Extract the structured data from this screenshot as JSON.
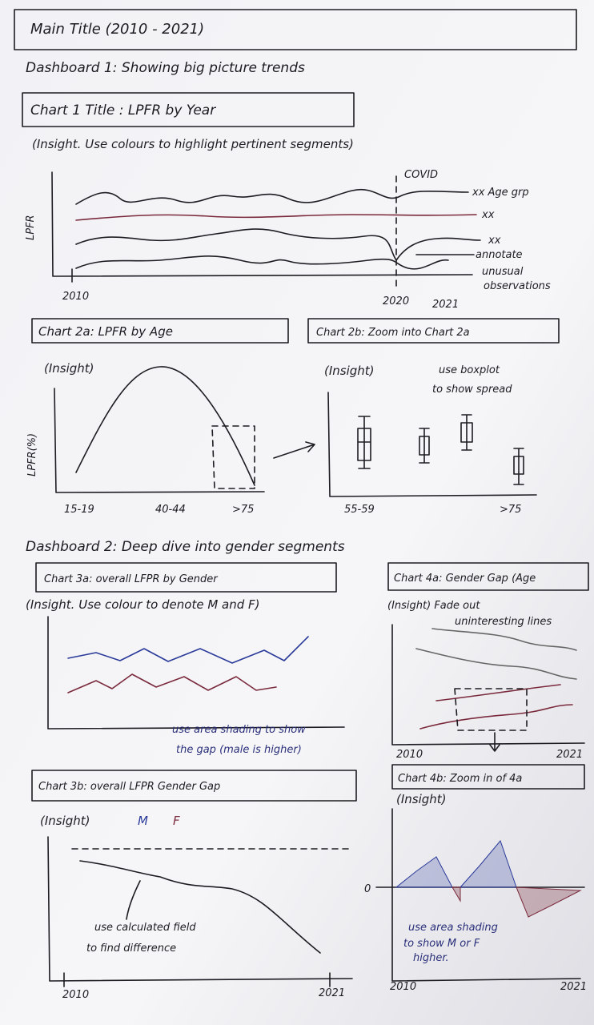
{
  "title": "Main Title (2010 - 2021)",
  "dashboard1": {
    "heading": "Dashboard 1: Showing big picture trends",
    "chart1": {
      "title": "Chart 1 Title : LPFR by Year",
      "insight": "(Insight. Use colours to highlight pertinent segments)",
      "y_label": "LPFR",
      "event_label": "COVID",
      "line_labels": [
        "xx Age grp",
        "xx",
        "xx"
      ],
      "annotation": [
        "annotate",
        "unusual",
        "observations"
      ],
      "x_labels": [
        "2010",
        "2020",
        "2021"
      ]
    },
    "chart2a": {
      "title": "Chart 2a: LPFR by Age",
      "insight": "(Insight)",
      "y_label": "LPFR(%)",
      "x_labels": [
        "15-19",
        "40-44",
        ">75"
      ]
    },
    "chart2b": {
      "title": "Chart 2b: Zoom into Chart 2a",
      "insight": "(Insight)",
      "note": [
        "use boxplot",
        "to show spread"
      ],
      "x_labels": [
        "55-59",
        ">75"
      ]
    }
  },
  "dashboard2": {
    "heading": "Dashboard 2: Deep dive into gender segments",
    "chart3a": {
      "title": "Chart 3a: overall LFPR by Gender",
      "insight": "(Insight. Use colour to denote M and F)",
      "note": [
        "use area shading to show",
        "the gap (male is higher)"
      ]
    },
    "chart4a": {
      "title": "Chart 4a: Gender Gap (Age",
      "insight": [
        "(Insight) Fade out",
        "uninteresting lines"
      ],
      "x_labels": [
        "2010",
        "2021"
      ]
    },
    "chart3b": {
      "title": "Chart 3b: overall LFPR Gender Gap",
      "insight": "(Insight)",
      "legend": [
        "M",
        "F"
      ],
      "note": [
        "use calculated field",
        "to find difference"
      ],
      "x_labels": [
        "2010",
        "2021"
      ]
    },
    "chart4b": {
      "title": "Chart 4b: Zoom in of 4a",
      "insight": "(Insight)",
      "zero_label": "0",
      "note": [
        "use area shading",
        "to show M or F",
        "higher."
      ],
      "x_labels": [
        "2010",
        "2021"
      ]
    }
  }
}
